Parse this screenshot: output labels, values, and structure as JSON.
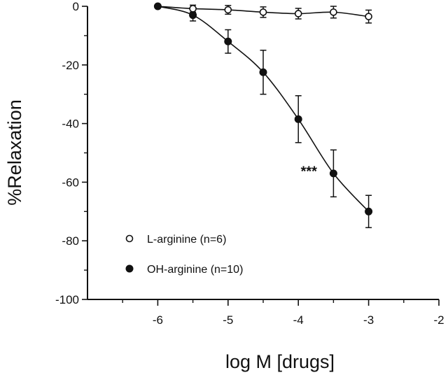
{
  "chart_data": {
    "type": "scatter",
    "xlabel": "log M [drugs]",
    "ylabel": "%Relaxation",
    "xlim": [
      -7,
      -2
    ],
    "ylim": [
      -100,
      0
    ],
    "xticks": [
      -6,
      -5,
      -4,
      -3,
      -2
    ],
    "yticks": [
      0,
      -20,
      -40,
      -60,
      -80,
      -100
    ],
    "x_tick_labels": [
      "-6",
      "-5",
      "-4",
      "-3",
      "-2"
    ],
    "y_tick_labels": [
      "0",
      "-20",
      "-40",
      "-60",
      "-80",
      "-100"
    ],
    "grid": false,
    "legend_position": "lower-left",
    "series": [
      {
        "name": "L-arginine (n=6)",
        "marker": "open-circle",
        "color": "#111111",
        "x": [
          -6,
          -5.5,
          -5,
          -4.5,
          -4,
          -3.5,
          -3
        ],
        "y": [
          0,
          -0.8,
          -1.2,
          -2,
          -2.5,
          -2,
          -3.5
        ],
        "error": [
          0,
          1.2,
          1.5,
          1.8,
          1.8,
          2,
          2.2
        ]
      },
      {
        "name": "OH-arginine (n=10)",
        "marker": "filled-circle",
        "color": "#111111",
        "x": [
          -6,
          -5.5,
          -5,
          -4.5,
          -4,
          -3.5,
          -3
        ],
        "y": [
          0,
          -3,
          -12,
          -22.5,
          -38.5,
          -57,
          -70
        ],
        "error": [
          0,
          2,
          4,
          7.5,
          8,
          8,
          5.5
        ]
      }
    ],
    "annotations": [
      {
        "text": "***",
        "x": -3.85,
        "y": -56
      }
    ]
  }
}
